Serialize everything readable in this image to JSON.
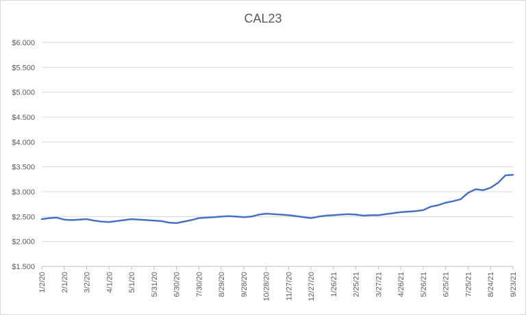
{
  "chart_data": {
    "type": "line",
    "title": "CAL23",
    "xlabel": "",
    "ylabel": "",
    "ylim": [
      1.5,
      6.0
    ],
    "yticks": [
      "$1.500",
      "$2.000",
      "$2.500",
      "$3.000",
      "$3.500",
      "$4.000",
      "$4.500",
      "$5.000",
      "$5.500",
      "$6.000"
    ],
    "ytick_values": [
      1.5,
      2.0,
      2.5,
      3.0,
      3.5,
      4.0,
      4.5,
      5.0,
      5.5,
      6.0
    ],
    "xticks": [
      "1/2/20",
      "2/1/20",
      "3/2/20",
      "4/1/20",
      "5/1/20",
      "5/31/20",
      "6/30/20",
      "7/30/20",
      "8/29/20",
      "9/28/20",
      "10/28/20",
      "11/27/20",
      "12/27/20",
      "1/26/21",
      "2/25/21",
      "3/27/21",
      "4/26/21",
      "5/26/21",
      "6/25/21",
      "7/25/21",
      "8/24/21",
      "9/23/21"
    ],
    "grid": "horizontal",
    "legend": "none",
    "series_color": "#4472c4",
    "series": [
      {
        "x": [
          "1/2/20",
          "1/12/20",
          "1/22/20",
          "2/1/20",
          "2/11/20",
          "2/21/20",
          "3/2/20",
          "3/12/20",
          "3/22/20",
          "4/1/20",
          "4/11/20",
          "4/21/20",
          "5/1/20",
          "5/11/20",
          "5/21/20",
          "5/31/20",
          "6/10/20",
          "6/20/20",
          "6/30/20",
          "7/10/20",
          "7/20/20",
          "7/30/20",
          "8/9/20",
          "8/19/20",
          "8/29/20",
          "9/8/20",
          "9/18/20",
          "9/28/20",
          "10/8/20",
          "10/18/20",
          "10/28/20",
          "11/7/20",
          "11/17/20",
          "11/27/20",
          "12/7/20",
          "12/17/20",
          "12/27/20",
          "1/6/21",
          "1/16/21",
          "1/26/21",
          "2/5/21",
          "2/15/21",
          "2/25/21",
          "3/7/21",
          "3/17/21",
          "3/27/21",
          "4/6/21",
          "4/16/21",
          "4/26/21",
          "5/6/21",
          "5/16/21",
          "5/26/21",
          "6/5/21",
          "6/15/21",
          "6/25/21",
          "7/5/21",
          "7/15/21",
          "7/25/21",
          "8/4/21",
          "8/14/21",
          "8/24/21",
          "9/3/21",
          "9/13/21",
          "9/23/21"
        ],
        "values": [
          2.45,
          2.47,
          2.48,
          2.44,
          2.43,
          2.44,
          2.45,
          2.42,
          2.4,
          2.39,
          2.41,
          2.43,
          2.45,
          2.44,
          2.43,
          2.42,
          2.41,
          2.38,
          2.37,
          2.4,
          2.43,
          2.47,
          2.48,
          2.49,
          2.5,
          2.51,
          2.5,
          2.49,
          2.5,
          2.54,
          2.56,
          2.55,
          2.54,
          2.53,
          2.51,
          2.49,
          2.47,
          2.5,
          2.52,
          2.53,
          2.54,
          2.55,
          2.54,
          2.52,
          2.53,
          2.53,
          2.55,
          2.57,
          2.59,
          2.6,
          2.61,
          2.63,
          2.7,
          2.73,
          2.78,
          2.81,
          2.85,
          2.98,
          3.05,
          3.03,
          3.08,
          3.18,
          3.33,
          3.34
        ]
      }
    ]
  }
}
